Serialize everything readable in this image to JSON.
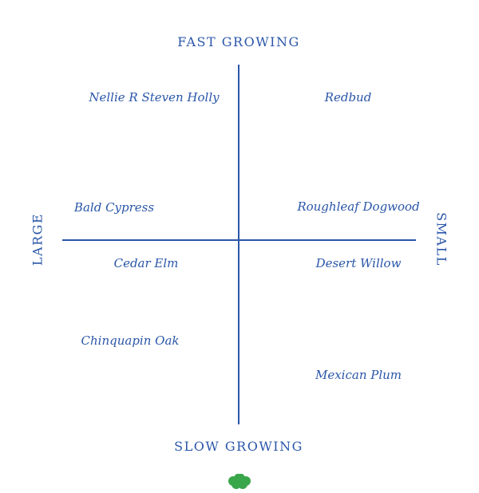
{
  "title": {
    "partial_text": ""
  },
  "axes": {
    "top": "FAST GROWING",
    "bottom": "SLOW GROWING",
    "left": "LARGE",
    "right": "SMALL"
  },
  "trees": [
    {
      "name": "Nellie R Steven Holly",
      "quadrant": "large-fast"
    },
    {
      "name": "Redbud",
      "quadrant": "small-fast"
    },
    {
      "name": "Bald Cypress",
      "quadrant": "large-fast"
    },
    {
      "name": "Roughleaf Dogwood",
      "quadrant": "small-fast"
    },
    {
      "name": "Cedar Elm",
      "quadrant": "large-slow"
    },
    {
      "name": "Desert Willow",
      "quadrant": "small-slow"
    },
    {
      "name": "Chinquapin Oak",
      "quadrant": "large-slow"
    },
    {
      "name": "Mexican Plum",
      "quadrant": "small-slow"
    }
  ],
  "colors": {
    "text": "#2a56a8",
    "lines": "#2a56a8",
    "tree_icon": "#3aa64a"
  },
  "icons": {
    "footer": "tree-icon"
  }
}
